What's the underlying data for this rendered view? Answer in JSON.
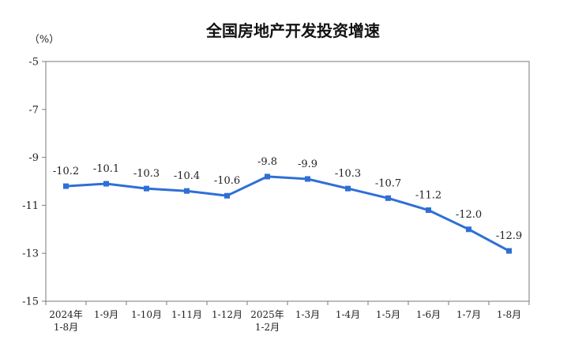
{
  "chart_data": {
    "type": "line",
    "title": "全国房地产开发投资增速",
    "ylabel": "（%）",
    "ylim": [
      -15,
      -5
    ],
    "yticks": [
      "-5",
      "-7",
      "-9",
      "-11",
      "-13",
      "-15"
    ],
    "categories": [
      [
        "2024年",
        "1-8月"
      ],
      [
        "1-9月"
      ],
      [
        "1-10月"
      ],
      [
        "1-11月"
      ],
      [
        "1-12月"
      ],
      [
        "2025年",
        "1-2月"
      ],
      [
        "1-3月"
      ],
      [
        "1-4月"
      ],
      [
        "1-5月"
      ],
      [
        "1-6月"
      ],
      [
        "1-7月"
      ],
      [
        "1-8月"
      ]
    ],
    "series": [
      {
        "values": [
          -10.2,
          -10.1,
          -10.3,
          -10.4,
          -10.6,
          -9.8,
          -9.9,
          -10.3,
          -10.7,
          -11.2,
          -12.0,
          -12.9
        ],
        "labels": [
          "-10.2",
          "-10.1",
          "-10.3",
          "-10.4",
          "-10.6",
          "-9.8",
          "-9.9",
          "-10.3",
          "-10.7",
          "-11.2",
          "-12.0",
          "-12.9"
        ],
        "color": "#2e6fd6"
      }
    ],
    "grid": false,
    "legend": "none"
  }
}
